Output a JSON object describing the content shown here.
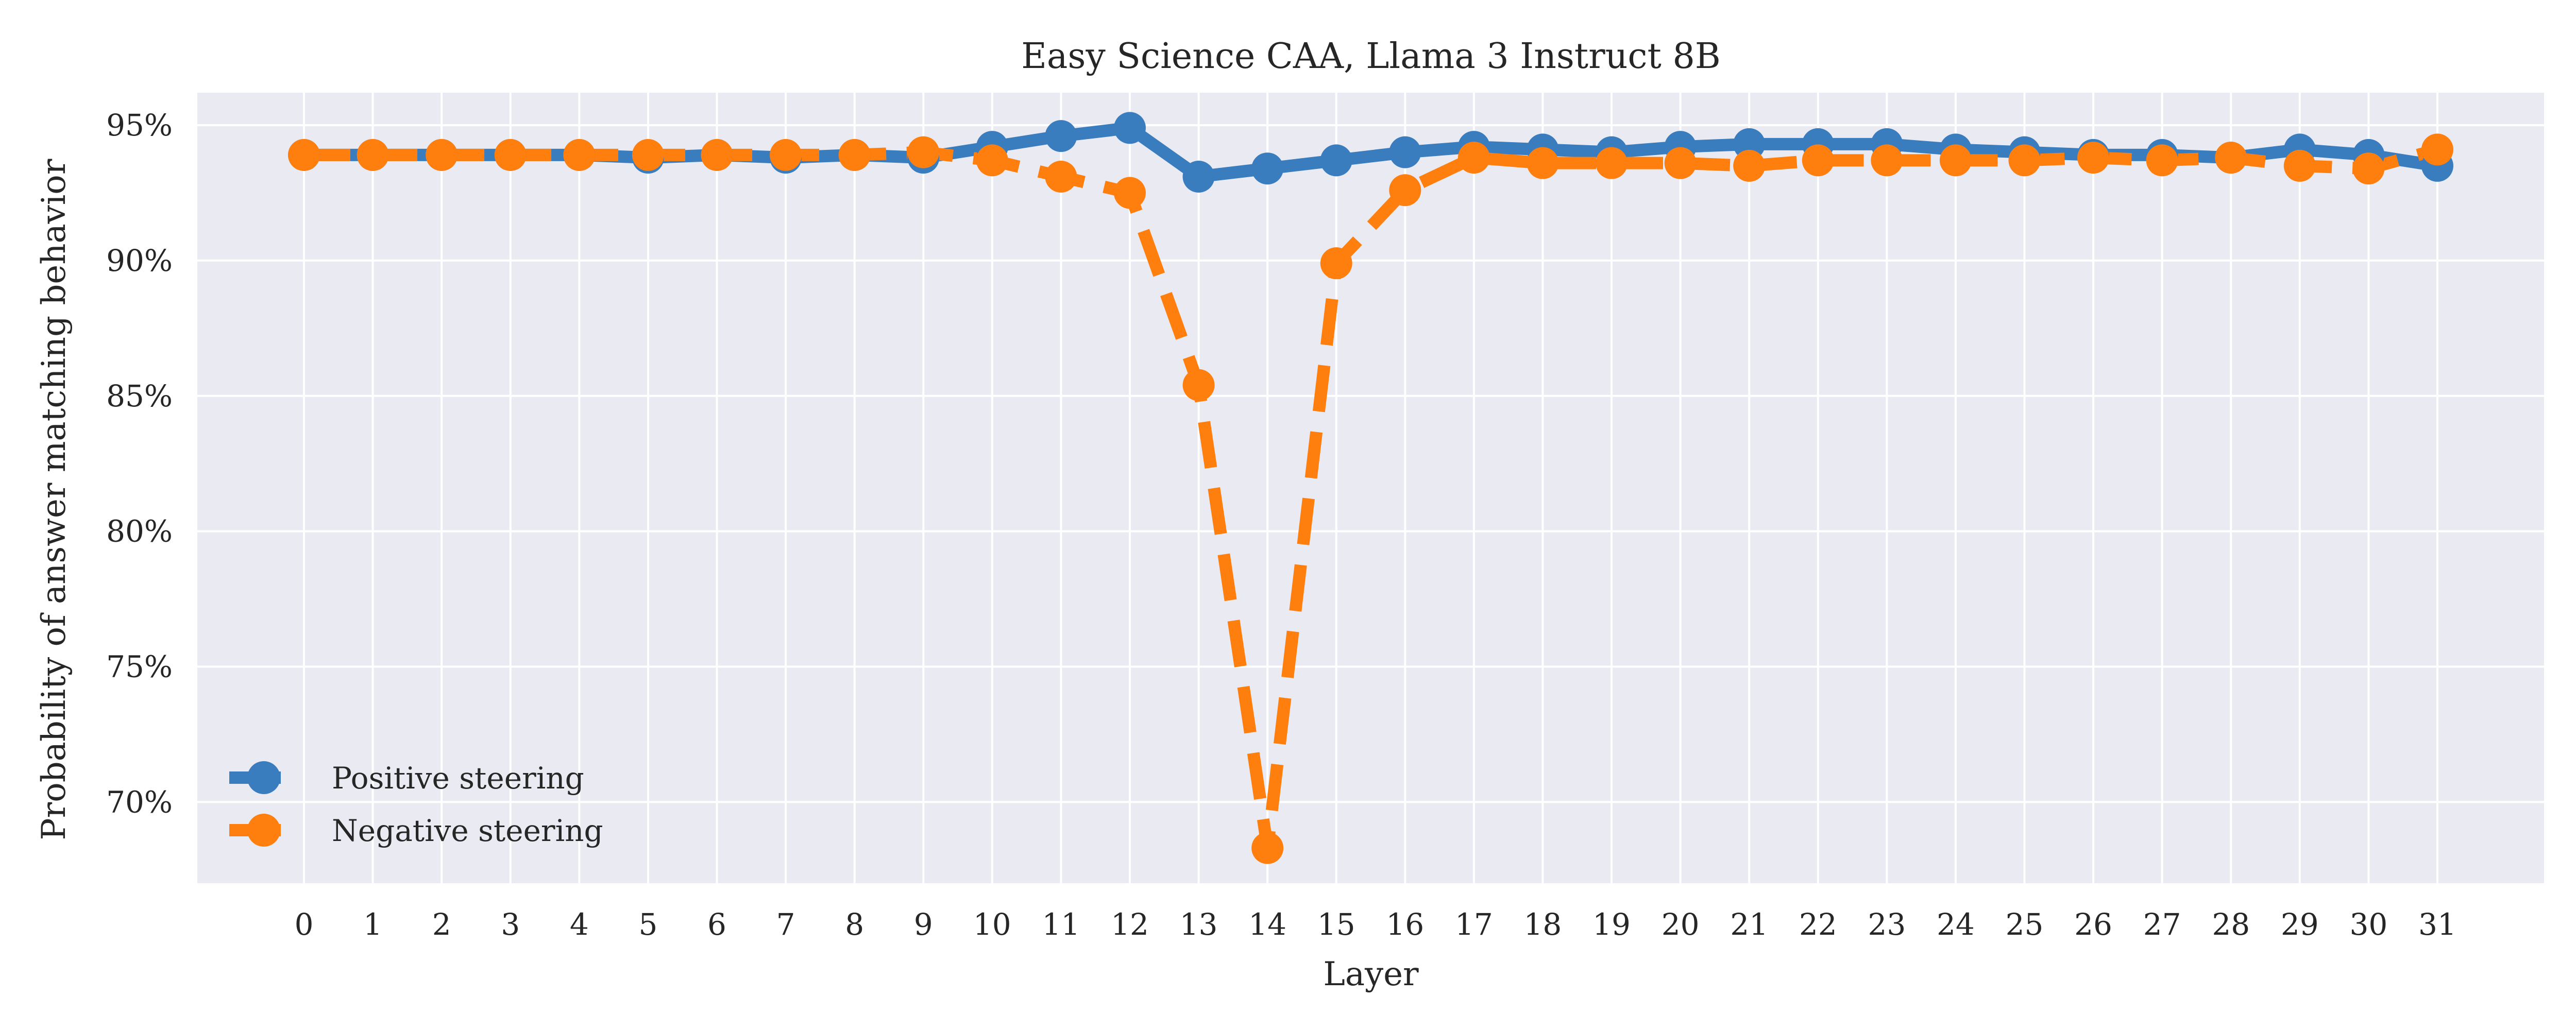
{
  "chart_data": {
    "type": "line",
    "title": "Easy Science CAA, Llama 3 Instruct 8B",
    "xlabel": "Layer",
    "ylabel": "Probability of answer matching behavior",
    "x": [
      0,
      1,
      2,
      3,
      4,
      5,
      6,
      7,
      8,
      9,
      10,
      11,
      12,
      13,
      14,
      15,
      16,
      17,
      18,
      19,
      20,
      21,
      22,
      23,
      24,
      25,
      26,
      27,
      28,
      29,
      30,
      31
    ],
    "xticks": [
      "0",
      "1",
      "2",
      "3",
      "4",
      "5",
      "6",
      "7",
      "8",
      "9",
      "10",
      "11",
      "12",
      "13",
      "14",
      "15",
      "16",
      "17",
      "18",
      "19",
      "20",
      "21",
      "22",
      "23",
      "24",
      "25",
      "26",
      "27",
      "28",
      "29",
      "30",
      "31"
    ],
    "yticks": [
      {
        "value": 70,
        "label": "70%"
      },
      {
        "value": 75,
        "label": "75%"
      },
      {
        "value": 80,
        "label": "80%"
      },
      {
        "value": 85,
        "label": "85%"
      },
      {
        "value": 90,
        "label": "90%"
      },
      {
        "value": 95,
        "label": "95%"
      }
    ],
    "ylim": [
      67,
      96.2
    ],
    "xlim": [
      -1.55,
      32.55
    ],
    "grid": true,
    "legend_position": "lower-left",
    "series": [
      {
        "name": "Positive steering",
        "color": "#3a7dbf",
        "line_style": "solid",
        "values": [
          93.9,
          93.9,
          93.9,
          93.9,
          93.9,
          93.8,
          93.9,
          93.8,
          93.9,
          93.8,
          94.2,
          94.6,
          94.9,
          93.1,
          93.4,
          93.7,
          94.0,
          94.2,
          94.1,
          94.0,
          94.2,
          94.3,
          94.3,
          94.3,
          94.1,
          94.0,
          93.9,
          93.9,
          93.8,
          94.1,
          93.9,
          93.5
        ]
      },
      {
        "name": "Negative steering",
        "color": "#ff7f0e",
        "line_style": "dashed",
        "values": [
          93.9,
          93.9,
          93.9,
          93.9,
          93.9,
          93.9,
          93.9,
          93.9,
          93.9,
          94.0,
          93.7,
          93.1,
          92.5,
          85.4,
          68.3,
          89.9,
          92.6,
          93.8,
          93.6,
          93.6,
          93.6,
          93.5,
          93.7,
          93.7,
          93.7,
          93.7,
          93.8,
          93.7,
          93.8,
          93.5,
          93.4,
          94.1
        ]
      }
    ]
  }
}
